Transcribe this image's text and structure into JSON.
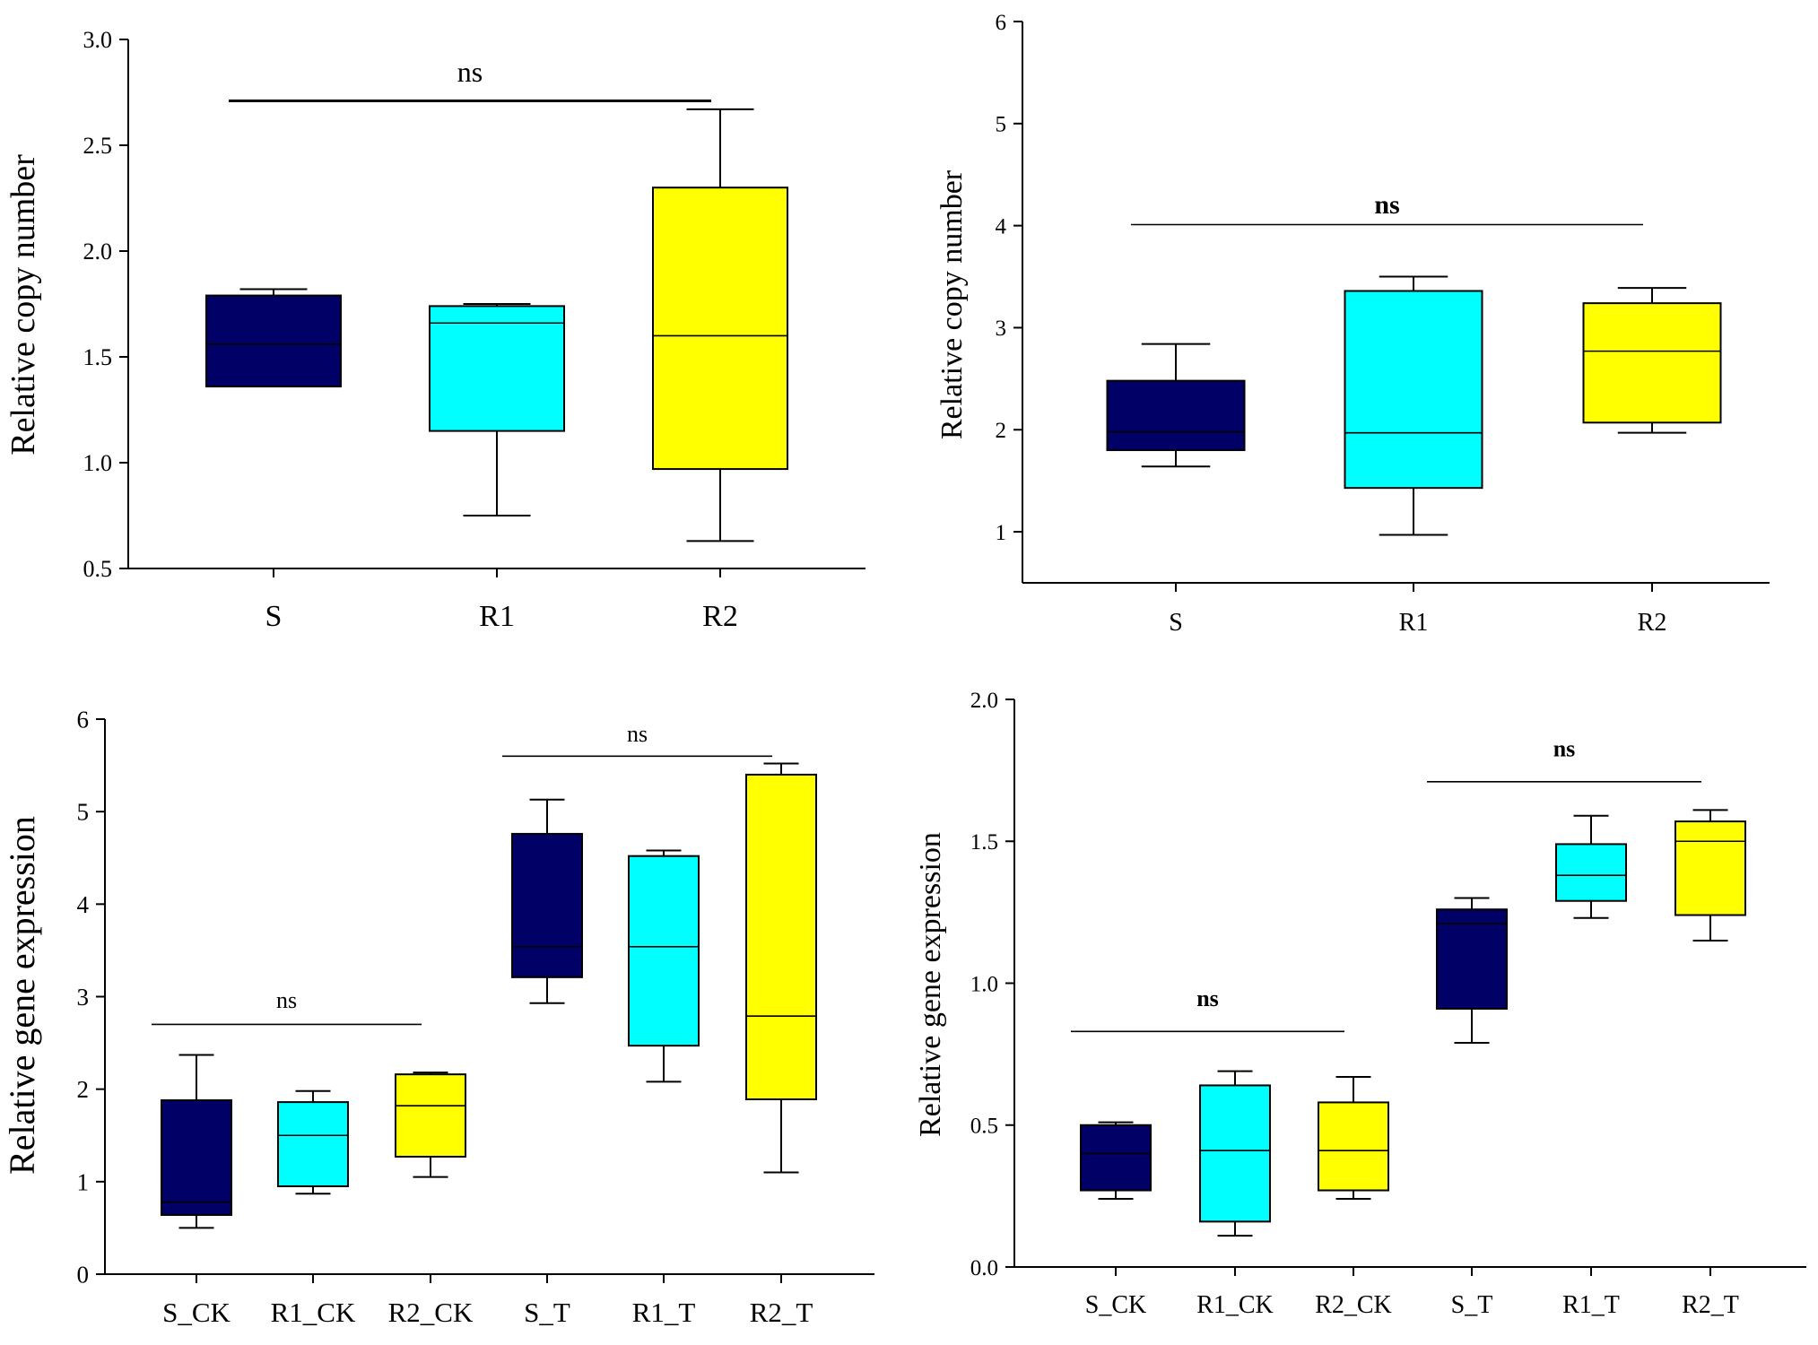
{
  "colors": {
    "S": "#000066",
    "R1": "#00FFFF",
    "R2": "#FFFF00",
    "line": "#000000"
  },
  "chart_data": [
    {
      "type": "box",
      "ylabel": "Relative copy number",
      "ylim": [
        0.5,
        3.0
      ],
      "yticks": [
        "0.5",
        "1.0",
        "1.5",
        "2.0",
        "2.5",
        "3.0"
      ],
      "categories": [
        "S",
        "R1",
        "R2"
      ],
      "boxes": [
        {
          "category": "S",
          "color_key": "S",
          "min": 1.36,
          "q1": 1.36,
          "median": 1.56,
          "q3": 1.79,
          "max": 1.82
        },
        {
          "category": "R1",
          "color_key": "R1",
          "min": 0.75,
          "q1": 1.15,
          "median": 1.66,
          "q3": 1.74,
          "max": 1.75
        },
        {
          "category": "R2",
          "color_key": "R2",
          "min": 0.63,
          "q1": 0.97,
          "median": 1.6,
          "q3": 2.3,
          "max": 2.67
        }
      ],
      "annotations": [
        {
          "text": "ns",
          "from": 0,
          "to": 2,
          "y": 2.71,
          "label_y": 2.8
        }
      ]
    },
    {
      "type": "box",
      "ylabel": "Relative copy number",
      "ylim": [
        0.5,
        6.0
      ],
      "yticks": [
        "1",
        "2",
        "3",
        "4",
        "5",
        "6"
      ],
      "categories": [
        "S",
        "R1",
        "R2"
      ],
      "boxes": [
        {
          "category": "S",
          "color_key": "S",
          "min": 1.64,
          "q1": 1.8,
          "median": 1.98,
          "q3": 2.48,
          "max": 2.84
        },
        {
          "category": "R1",
          "color_key": "R1",
          "min": 0.97,
          "q1": 1.43,
          "median": 1.97,
          "q3": 3.36,
          "max": 3.5
        },
        {
          "category": "R2",
          "color_key": "R2",
          "min": 1.97,
          "q1": 2.07,
          "median": 2.77,
          "q3": 3.24,
          "max": 3.39
        }
      ],
      "annotations": [
        {
          "text": "ns",
          "from": 0,
          "to": 2,
          "y": 4.01,
          "label_y": 4.12
        }
      ]
    },
    {
      "type": "box",
      "ylabel": "Relative gene expression",
      "ylim": [
        0,
        6
      ],
      "yticks": [
        "0",
        "1",
        "2",
        "3",
        "4",
        "5",
        "6"
      ],
      "categories": [
        "S_CK",
        "R1_CK",
        "R2_CK",
        "S_T",
        "R1_T",
        "R2_T"
      ],
      "boxes": [
        {
          "category": "S_CK",
          "color_key": "S",
          "min": 0.5,
          "q1": 0.64,
          "median": 0.78,
          "q3": 1.88,
          "max": 2.37
        },
        {
          "category": "R1_CK",
          "color_key": "R1",
          "min": 0.87,
          "q1": 0.95,
          "median": 1.5,
          "q3": 1.86,
          "max": 1.98
        },
        {
          "category": "R2_CK",
          "color_key": "R2",
          "min": 1.05,
          "q1": 1.27,
          "median": 1.82,
          "q3": 2.16,
          "max": 2.18
        },
        {
          "category": "S_T",
          "color_key": "S",
          "min": 2.93,
          "q1": 3.21,
          "median": 3.54,
          "q3": 4.76,
          "max": 5.13
        },
        {
          "category": "R1_T",
          "color_key": "R1",
          "min": 2.08,
          "q1": 2.47,
          "median": 3.54,
          "q3": 4.52,
          "max": 4.58
        },
        {
          "category": "R2_T",
          "color_key": "R2",
          "min": 1.1,
          "q1": 1.89,
          "median": 2.79,
          "q3": 5.4,
          "max": 5.52
        }
      ],
      "annotations": [
        {
          "text": "ns",
          "from": 0,
          "to": 2,
          "y": 2.7,
          "label_y": 2.88
        },
        {
          "text": "ns",
          "from": 3,
          "to": 5,
          "y": 5.6,
          "label_y": 5.76
        }
      ]
    },
    {
      "type": "box",
      "ylabel": "Relative gene expression",
      "ylim": [
        0.0,
        2.0
      ],
      "yticks": [
        "0.0",
        "0.5",
        "1.0",
        "1.5",
        "2.0"
      ],
      "categories": [
        "S_CK",
        "R1_CK",
        "R2_CK",
        "S_T",
        "R1_T",
        "R2_T"
      ],
      "boxes": [
        {
          "category": "S_CK",
          "color_key": "S",
          "min": 0.24,
          "q1": 0.27,
          "median": 0.4,
          "q3": 0.5,
          "max": 0.51
        },
        {
          "category": "R1_CK",
          "color_key": "R1",
          "min": 0.11,
          "q1": 0.16,
          "median": 0.41,
          "q3": 0.64,
          "max": 0.69
        },
        {
          "category": "R2_CK",
          "color_key": "R2",
          "min": 0.24,
          "q1": 0.27,
          "median": 0.41,
          "q3": 0.58,
          "max": 0.67
        },
        {
          "category": "S_T",
          "color_key": "S",
          "min": 0.79,
          "q1": 0.91,
          "median": 1.21,
          "q3": 1.26,
          "max": 1.3
        },
        {
          "category": "R1_T",
          "color_key": "R1",
          "min": 1.23,
          "q1": 1.29,
          "median": 1.38,
          "q3": 1.49,
          "max": 1.59
        },
        {
          "category": "R2_T",
          "color_key": "R2",
          "min": 1.15,
          "q1": 1.24,
          "median": 1.5,
          "q3": 1.57,
          "max": 1.61
        }
      ],
      "annotations": [
        {
          "text": "ns",
          "from": 0,
          "to": 2,
          "y": 0.83,
          "label_y": 0.92
        },
        {
          "text": "ns",
          "from": 3,
          "to": 5,
          "y": 1.71,
          "label_y": 1.8
        }
      ]
    }
  ]
}
